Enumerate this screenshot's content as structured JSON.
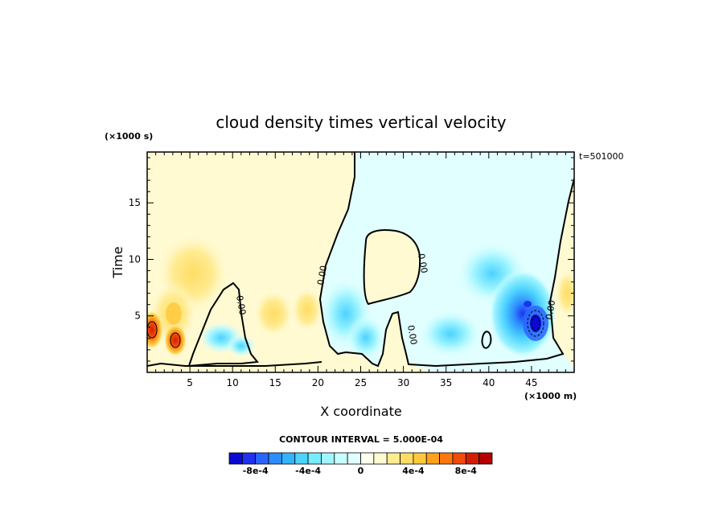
{
  "chart_data": {
    "type": "heatmap",
    "title": "cloud density times vertical velocity",
    "xlabel": "X coordinate",
    "ylabel": "Time",
    "x_unit": "(×1000 m)",
    "y_unit": "(×1000 s)",
    "annotation": "t=501000",
    "xlim": [
      0,
      50
    ],
    "ylim": [
      0,
      19.5
    ],
    "x_ticks": [
      5,
      10,
      15,
      20,
      25,
      30,
      35,
      40,
      45
    ],
    "y_ticks": [
      5,
      10,
      15
    ],
    "grid": false,
    "contour_interval_label": "CONTOUR INTERVAL = 5.000E-04",
    "contour_label": "0.00",
    "colorbar": {
      "placement": "bottom",
      "tick_labels": [
        "-8e-4",
        "-4e-4",
        "0",
        "4e-4",
        "8e-4"
      ],
      "tick_values": [
        -0.0008,
        -0.0004,
        0,
        0.0004,
        0.0008
      ],
      "colors": [
        "#0a0ad2",
        "#1e32f0",
        "#2d64ff",
        "#2d8cff",
        "#32b4ff",
        "#4bd2ff",
        "#78ebff",
        "#a0f5ff",
        "#c8ffff",
        "#e1ffff",
        "#fffff0",
        "#fffad2",
        "#ffeb91",
        "#ffdc64",
        "#ffc83c",
        "#ffa01e",
        "#ff780f",
        "#f04b0a",
        "#d21e05",
        "#b40000"
      ]
    },
    "features": [
      {
        "x": 0.6,
        "y": 3.6,
        "value": 0.0009
      },
      {
        "x": 3.2,
        "y": 3.0,
        "value": 0.00085
      },
      {
        "x": 45.7,
        "y": 4.5,
        "value": -0.0009
      },
      {
        "x": 44.8,
        "y": 5.3,
        "value": -0.0006
      },
      {
        "x": 22.5,
        "y": 5.0,
        "value": -0.0003
      },
      {
        "x": 29.0,
        "y": 9.0,
        "value": 0.0001
      }
    ]
  }
}
